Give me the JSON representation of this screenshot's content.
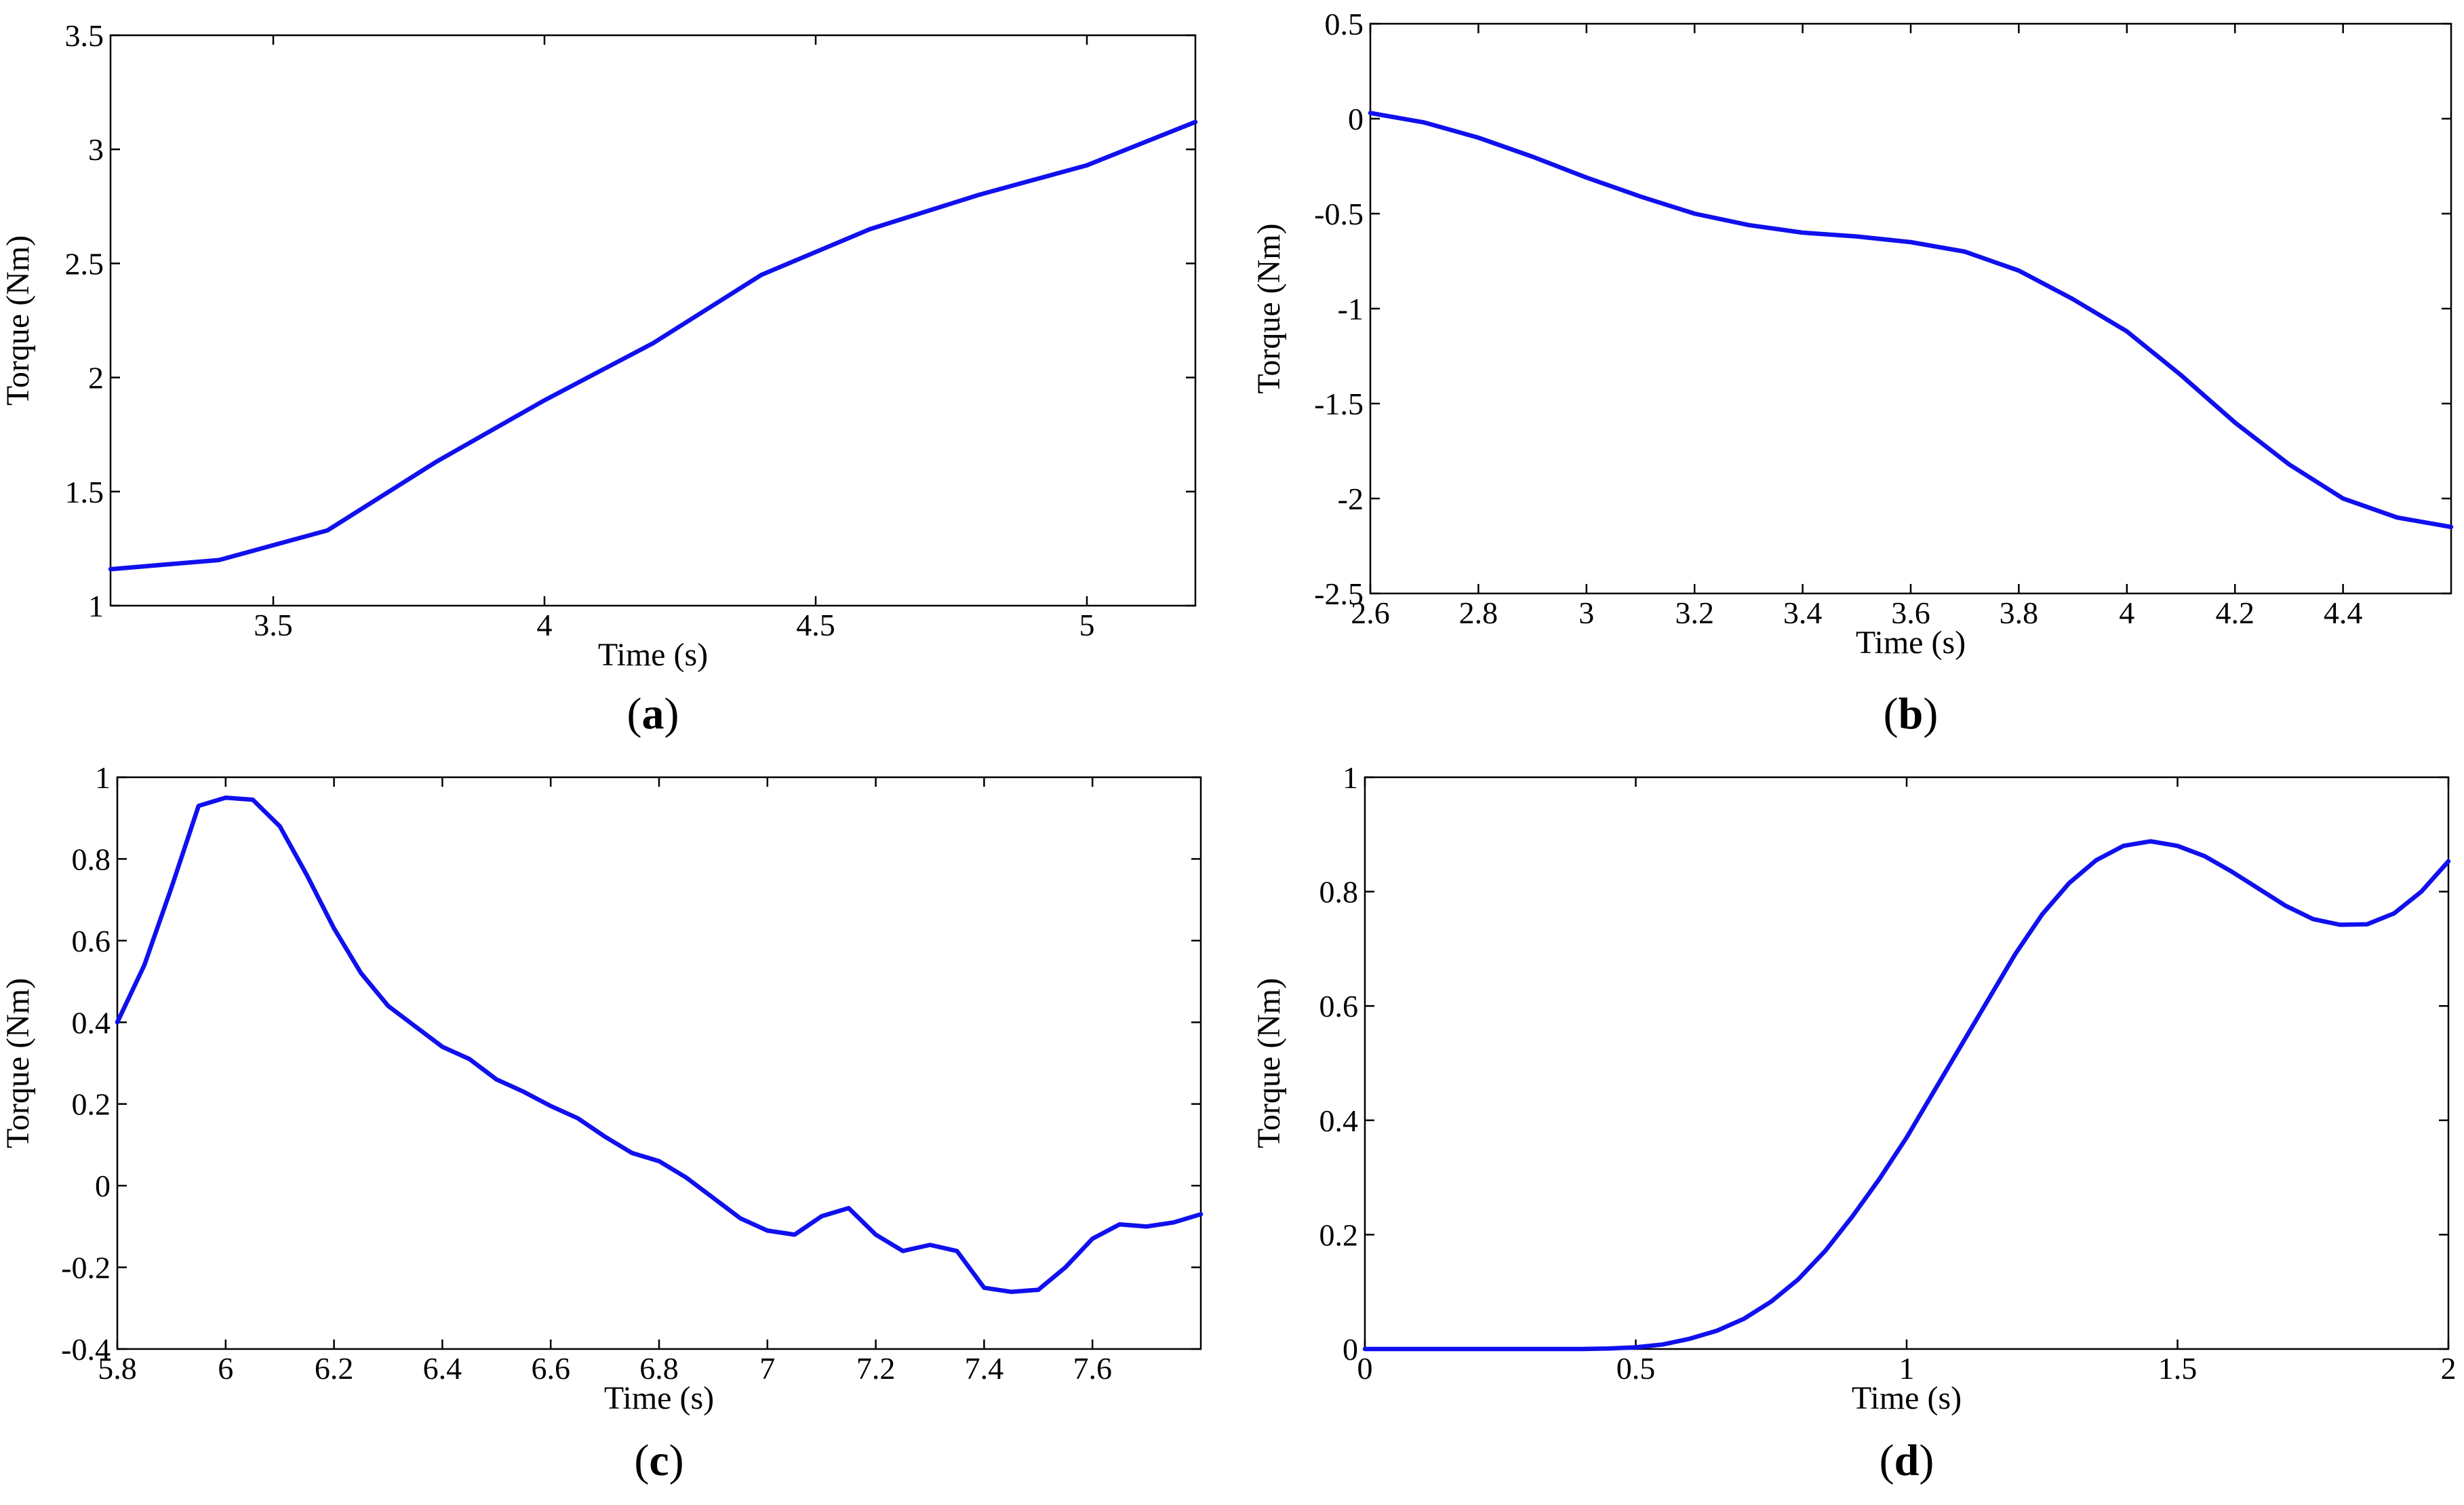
{
  "chart_data": [
    {
      "type": "line",
      "panel": "a",
      "caption": "(a)",
      "xlabel": "Time (s)",
      "ylabel": "Torque (Nm)",
      "xlim": [
        3.2,
        5.2
      ],
      "ylim": [
        1,
        3.5
      ],
      "xticks": [
        3.5,
        4,
        4.5,
        5
      ],
      "xtick_labels": [
        "3.5",
        "4",
        "4.5",
        "5"
      ],
      "yticks": [
        1,
        1.5,
        2,
        2.5,
        3,
        3.5
      ],
      "ytick_labels": [
        "1",
        "1.5",
        "2",
        "2.5",
        "3",
        "3.5"
      ],
      "grid": false,
      "series": [
        {
          "name": "torque",
          "color": "#1010ee",
          "x": [
            3.2,
            3.4,
            3.6,
            3.8,
            4.0,
            4.2,
            4.4,
            4.6,
            4.8,
            5.0,
            5.2
          ],
          "y": [
            1.16,
            1.2,
            1.33,
            1.63,
            1.9,
            2.15,
            2.45,
            2.65,
            2.8,
            2.93,
            3.12
          ]
        }
      ]
    },
    {
      "type": "line",
      "panel": "b",
      "caption": "(b)",
      "xlabel": "Time (s)",
      "ylabel": "Torque (Nm)",
      "xlim": [
        2.6,
        4.6
      ],
      "ylim": [
        -2.5,
        0.5
      ],
      "xticks": [
        2.6,
        2.8,
        3,
        3.2,
        3.4,
        3.6,
        3.8,
        4,
        4.2,
        4.4
      ],
      "xtick_labels": [
        "2.6",
        "2.8",
        "3",
        "3.2",
        "3.4",
        "3.6",
        "3.8",
        "4",
        "4.2",
        "4.4"
      ],
      "yticks": [
        -2.5,
        -2,
        -1.5,
        -1,
        -0.5,
        0,
        0.5
      ],
      "ytick_labels": [
        "-2.5",
        "-2",
        "-1.5",
        "-1",
        "-0.5",
        "0",
        "0.5"
      ],
      "grid": false,
      "series": [
        {
          "name": "torque",
          "color": "#1010ee",
          "x": [
            2.6,
            2.7,
            2.8,
            2.9,
            3.0,
            3.1,
            3.2,
            3.3,
            3.4,
            3.5,
            3.6,
            3.7,
            3.8,
            3.9,
            4.0,
            4.1,
            4.2,
            4.3,
            4.4,
            4.5,
            4.6
          ],
          "y": [
            0.03,
            -0.02,
            -0.1,
            -0.2,
            -0.31,
            -0.41,
            -0.5,
            -0.56,
            -0.6,
            -0.62,
            -0.65,
            -0.7,
            -0.8,
            -0.95,
            -1.12,
            -1.35,
            -1.6,
            -1.82,
            -2.0,
            -2.1,
            -2.15
          ]
        }
      ]
    },
    {
      "type": "line",
      "panel": "c",
      "caption": "(c)",
      "xlabel": "Time (s)",
      "ylabel": "Torque (Nm)",
      "xlim": [
        5.8,
        7.8
      ],
      "ylim": [
        -0.4,
        1
      ],
      "xticks": [
        5.8,
        6,
        6.2,
        6.4,
        6.6,
        6.8,
        7,
        7.2,
        7.4,
        7.6
      ],
      "xtick_labels": [
        "5.8",
        "6",
        "6.2",
        "6.4",
        "6.6",
        "6.8",
        "7",
        "7.2",
        "7.4",
        "7.6"
      ],
      "yticks": [
        -0.4,
        -0.2,
        0,
        0.2,
        0.4,
        0.6,
        0.8,
        1
      ],
      "ytick_labels": [
        "-0.4",
        "-0.2",
        "0",
        "0.2",
        "0.4",
        "0.6",
        "0.8",
        "1"
      ],
      "grid": false,
      "series": [
        {
          "name": "torque",
          "color": "#1010ee",
          "x": [
            5.8,
            5.85,
            5.9,
            5.95,
            6.0,
            6.05,
            6.1,
            6.15,
            6.2,
            6.25,
            6.3,
            6.35,
            6.4,
            6.45,
            6.5,
            6.55,
            6.6,
            6.65,
            6.7,
            6.75,
            6.8,
            6.85,
            6.9,
            6.95,
            7.0,
            7.05,
            7.1,
            7.15,
            7.2,
            7.25,
            7.3,
            7.35,
            7.4,
            7.45,
            7.5,
            7.55,
            7.6,
            7.65,
            7.7,
            7.75,
            7.8
          ],
          "y": [
            0.4,
            0.54,
            0.73,
            0.93,
            0.95,
            0.945,
            0.88,
            0.76,
            0.63,
            0.52,
            0.44,
            0.39,
            0.34,
            0.31,
            0.26,
            0.23,
            0.195,
            0.165,
            0.12,
            0.08,
            0.06,
            0.02,
            -0.03,
            -0.08,
            -0.11,
            -0.12,
            -0.075,
            -0.055,
            -0.12,
            -0.16,
            -0.145,
            -0.16,
            -0.25,
            -0.26,
            -0.255,
            -0.2,
            -0.13,
            -0.095,
            -0.1,
            -0.09,
            -0.07
          ]
        }
      ]
    },
    {
      "type": "line",
      "panel": "d",
      "caption": "(d)",
      "xlabel": "Time (s)",
      "ylabel": "Torque (Nm)",
      "xlim": [
        0,
        2
      ],
      "ylim": [
        0,
        1
      ],
      "xticks": [
        0,
        0.5,
        1,
        1.5,
        2
      ],
      "xtick_labels": [
        "0",
        "0.5",
        "1",
        "1.5",
        "2"
      ],
      "yticks": [
        0,
        0.2,
        0.4,
        0.6,
        0.8,
        1
      ],
      "ytick_labels": [
        "0",
        "0.2",
        "0.4",
        "0.6",
        "0.8",
        "1"
      ],
      "grid": false,
      "series": [
        {
          "name": "torque",
          "color": "#1010ee",
          "x": [
            0,
            0.1,
            0.2,
            0.3,
            0.4,
            0.45,
            0.5,
            0.55,
            0.6,
            0.65,
            0.7,
            0.75,
            0.8,
            0.85,
            0.9,
            0.95,
            1.0,
            1.05,
            1.1,
            1.15,
            1.2,
            1.25,
            1.3,
            1.35,
            1.4,
            1.45,
            1.5,
            1.55,
            1.6,
            1.65,
            1.7,
            1.75,
            1.8,
            1.85,
            1.9,
            1.95,
            2.0
          ],
          "y": [
            0,
            0,
            0,
            0,
            0,
            0.001,
            0.003,
            0.008,
            0.018,
            0.032,
            0.053,
            0.083,
            0.122,
            0.172,
            0.232,
            0.298,
            0.37,
            0.45,
            0.53,
            0.61,
            0.69,
            0.76,
            0.815,
            0.855,
            0.88,
            0.888,
            0.88,
            0.862,
            0.835,
            0.805,
            0.775,
            0.752,
            0.742,
            0.743,
            0.762,
            0.8,
            0.853
          ]
        }
      ]
    }
  ]
}
